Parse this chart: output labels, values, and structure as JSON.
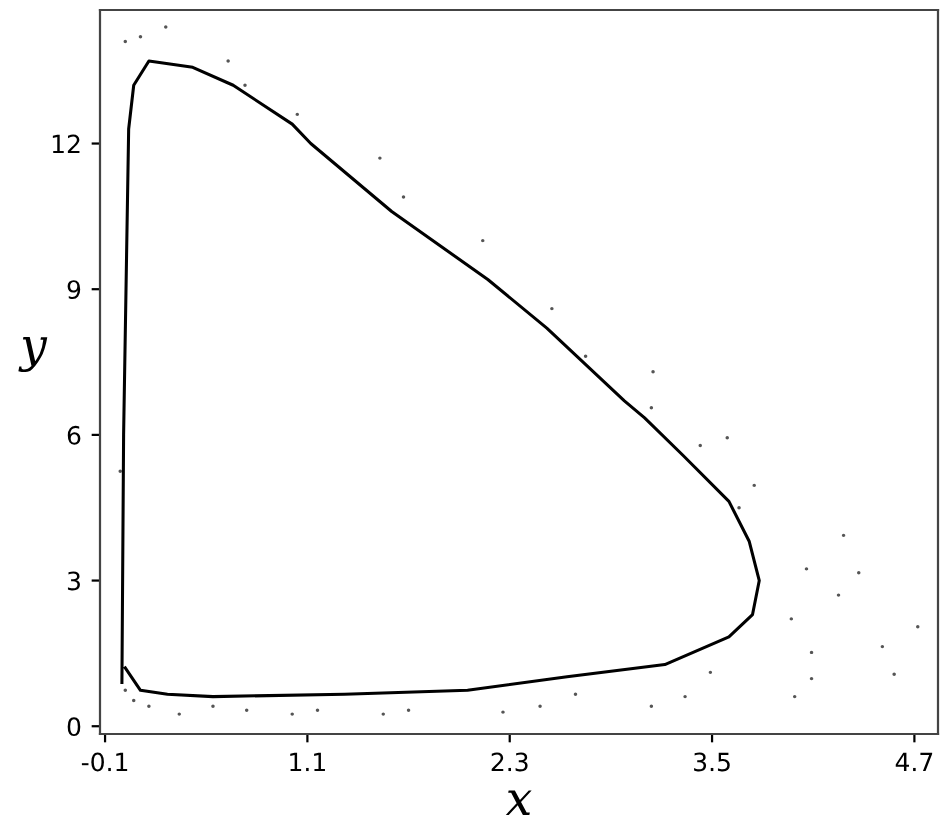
{
  "chart_data": {
    "type": "line",
    "xlabel": "x",
    "ylabel": "y",
    "xlim": [
      -0.13,
      4.84
    ],
    "ylim": [
      -0.16,
      14.75
    ],
    "xticks": [
      {
        "value": -0.1,
        "label": "-0.1"
      },
      1.1,
      2.3,
      3.5,
      4.7
    ],
    "yticks": [
      0,
      3,
      6,
      9,
      12
    ],
    "grid": false,
    "legend": false,
    "series": [
      {
        "color": "#000000",
        "marker": "none",
        "line_style": "solid",
        "x": [
          0.0,
          0.01,
          0.04,
          0.07,
          0.16,
          0.42,
          0.66,
          1.01,
          1.12,
          1.6,
          2.17,
          2.52,
          2.98,
          3.1,
          3.33,
          3.6,
          3.72,
          3.78,
          3.74,
          3.6,
          3.22,
          2.64,
          2.05,
          1.32,
          0.54,
          0.27,
          0.11,
          0.02
        ],
        "values": [
          0.9,
          6.0,
          12.3,
          13.2,
          13.7,
          13.57,
          13.2,
          12.4,
          12.0,
          10.6,
          9.2,
          8.2,
          6.7,
          6.35,
          5.57,
          4.63,
          3.81,
          3.0,
          2.3,
          1.84,
          1.27,
          1.02,
          0.74,
          0.66,
          0.61,
          0.66,
          0.74,
          1.2
        ]
      },
      {
        "type": "scatter",
        "color": "#555555",
        "marker": "circle",
        "x": [
          3.59,
          3.43,
          3.75,
          3.66,
          4.28,
          4.37,
          4.06,
          4.25,
          3.97,
          4.09,
          4.51,
          4.72,
          4.58,
          4.09,
          3.99,
          3.49,
          3.34,
          3.14,
          2.69,
          2.48,
          2.26,
          1.7,
          1.55,
          1.16,
          1.01,
          0.74,
          0.54,
          0.34,
          0.16,
          0.07,
          0.02,
          -0.01,
          0.26,
          0.02,
          0.11,
          0.63,
          0.73,
          1.04,
          1.53,
          1.67,
          2.14,
          2.55,
          2.75,
          3.15,
          3.14
        ],
        "values": [
          5.94,
          5.78,
          4.96,
          4.5,
          3.93,
          3.16,
          3.24,
          2.7,
          2.21,
          1.52,
          1.64,
          2.05,
          1.07,
          0.98,
          0.61,
          1.11,
          0.61,
          0.41,
          0.66,
          0.41,
          0.29,
          0.33,
          0.25,
          0.33,
          0.25,
          0.33,
          0.41,
          0.25,
          0.41,
          0.53,
          0.74,
          5.25,
          14.4,
          14.1,
          14.2,
          13.7,
          13.2,
          12.6,
          11.7,
          10.9,
          10.0,
          8.6,
          7.62,
          7.3,
          6.56
        ]
      }
    ]
  }
}
